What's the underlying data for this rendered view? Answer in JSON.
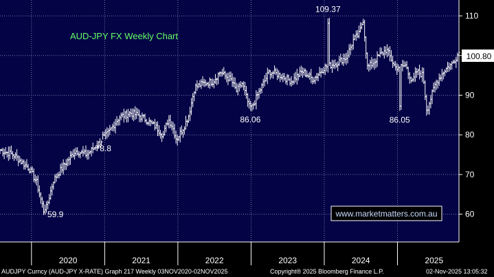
{
  "chart_data": {
    "type": "ohlc",
    "title": "AUD-JPY FX Weekly Chart",
    "watermark": "www.marketmatters.com.au",
    "last_value": 100.8,
    "y_ticks": [
      60,
      70,
      80,
      90,
      100,
      110
    ],
    "ylim": [
      53,
      114
    ],
    "x_ticks": [
      "2020",
      "2021",
      "2022",
      "2023",
      "2024",
      "2025"
    ],
    "xlim": [
      2019.57,
      2025.84
    ],
    "grid": true,
    "annotations": [
      {
        "label": "59.9",
        "x": 2020.18,
        "y": 59.9
      },
      {
        "label": "78.8",
        "x": 2020.98,
        "y": 78.8
      },
      {
        "label": "86.06",
        "x": 2022.99,
        "y": 86.06
      },
      {
        "label": "109.37",
        "x": 2024.05,
        "y": 109.37
      },
      {
        "label": "86.05",
        "x": 2025.03,
        "y": 86.05
      }
    ],
    "anchors": [
      [
        2019.57,
        76.2
      ],
      [
        2019.75,
        75.0
      ],
      [
        2019.97,
        71.5
      ],
      [
        2020.07,
        68.0
      ],
      [
        2020.18,
        59.9
      ],
      [
        2020.3,
        68.5
      ],
      [
        2020.45,
        72.5
      ],
      [
        2020.6,
        76.0
      ],
      [
        2020.75,
        75.0
      ],
      [
        2020.9,
        77.5
      ],
      [
        2021.05,
        80.5
      ],
      [
        2021.2,
        84.5
      ],
      [
        2021.35,
        85.5
      ],
      [
        2021.45,
        85.0
      ],
      [
        2021.55,
        84.0
      ],
      [
        2021.7,
        82.0
      ],
      [
        2021.8,
        80.0
      ],
      [
        2021.87,
        84.0
      ],
      [
        2021.93,
        82.0
      ],
      [
        2021.98,
        78.8
      ],
      [
        2022.08,
        82.0
      ],
      [
        2022.15,
        85.0
      ],
      [
        2022.23,
        92.0
      ],
      [
        2022.35,
        93.0
      ],
      [
        2022.48,
        93.5
      ],
      [
        2022.58,
        96.0
      ],
      [
        2022.63,
        95.0
      ],
      [
        2022.72,
        94.0
      ],
      [
        2022.8,
        91.0
      ],
      [
        2022.88,
        93.0
      ],
      [
        2022.99,
        86.06
      ],
      [
        2023.1,
        90.5
      ],
      [
        2023.25,
        96.0
      ],
      [
        2023.4,
        95.0
      ],
      [
        2023.55,
        93.5
      ],
      [
        2023.7,
        96.0
      ],
      [
        2023.85,
        94.0
      ],
      [
        2024.0,
        97.0
      ],
      [
        2024.15,
        98.0
      ],
      [
        2024.3,
        99.5
      ],
      [
        2024.4,
        104.0
      ],
      [
        2024.48,
        105.5
      ],
      [
        2024.53,
        109.37
      ],
      [
        2024.59,
        97.0
      ],
      [
        2024.66,
        98.0
      ],
      [
        2024.75,
        100.0
      ],
      [
        2024.85,
        101.5
      ],
      [
        2024.97,
        97.0
      ],
      [
        2025.12,
        97.5
      ],
      [
        2025.2,
        93.0
      ],
      [
        2025.26,
        96.0
      ],
      [
        2025.35,
        95.0
      ],
      [
        2025.4,
        86.05
      ],
      [
        2025.52,
        93.0
      ],
      [
        2025.65,
        96.5
      ],
      [
        2025.75,
        98.0
      ],
      [
        2025.84,
        100.8
      ]
    ]
  },
  "footer": {
    "left": "AUDJPY Curncy (AUD-JPY X-RATE) Graph 217 Weekly 03NOV2020-02NOV2025",
    "center": "Copyright® 2025 Bloomberg Finance L.P.",
    "right": "02-Nov-2025 13:05:32"
  },
  "colors": {
    "plot_bg": "#030345",
    "bars": "#ffffff",
    "grid": "#7a7aa8",
    "title": "#66ff66",
    "label_box": "#ffffff"
  }
}
